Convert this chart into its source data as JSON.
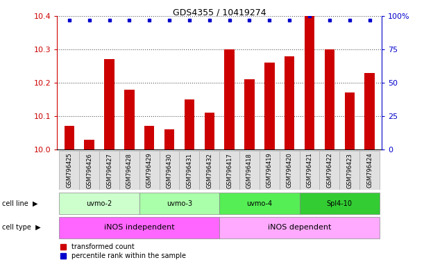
{
  "title": "GDS4355 / 10419274",
  "samples": [
    "GSM796425",
    "GSM796426",
    "GSM796427",
    "GSM796428",
    "GSM796429",
    "GSM796430",
    "GSM796431",
    "GSM796432",
    "GSM796417",
    "GSM796418",
    "GSM796419",
    "GSM796420",
    "GSM796421",
    "GSM796422",
    "GSM796423",
    "GSM796424"
  ],
  "transformed_counts": [
    10.07,
    10.03,
    10.27,
    10.18,
    10.07,
    10.06,
    10.15,
    10.11,
    10.3,
    10.21,
    10.26,
    10.28,
    10.4,
    10.3,
    10.17,
    10.23
  ],
  "percentile_ranks": [
    97,
    97,
    97,
    97,
    97,
    97,
    97,
    97,
    97,
    97,
    97,
    97,
    100,
    97,
    97,
    97
  ],
  "cell_lines": [
    {
      "label": "uvmo-2",
      "start": 0,
      "end": 3,
      "color": "#ccffcc"
    },
    {
      "label": "uvmo-3",
      "start": 4,
      "end": 7,
      "color": "#aaffaa"
    },
    {
      "label": "uvmo-4",
      "start": 8,
      "end": 11,
      "color": "#55ee55"
    },
    {
      "label": "Spl4-10",
      "start": 12,
      "end": 15,
      "color": "#33cc33"
    }
  ],
  "cell_types": [
    {
      "label": "iNOS independent",
      "start": 0,
      "end": 7,
      "color": "#ff66ff"
    },
    {
      "label": "iNOS dependent",
      "start": 8,
      "end": 15,
      "color": "#ffaaff"
    }
  ],
  "ylim_left": [
    10.0,
    10.4
  ],
  "ylim_right": [
    0,
    100
  ],
  "yticks_left": [
    10.0,
    10.1,
    10.2,
    10.3,
    10.4
  ],
  "yticks_right": [
    0,
    25,
    50,
    75,
    100
  ],
  "ytick_labels_right": [
    "0",
    "25",
    "50",
    "75",
    "100%"
  ],
  "bar_color": "#cc0000",
  "dot_color": "#0000cc",
  "bar_width": 0.5,
  "grid_color": "#555555",
  "bg_color": "#ffffff",
  "left_axis_color": "#cc0000",
  "right_axis_color": "#0000cc",
  "title_fontsize": 9,
  "tick_fontsize": 8,
  "label_fontsize": 6,
  "cell_line_fontsize": 7,
  "cell_type_fontsize": 8,
  "legend_fontsize": 7
}
